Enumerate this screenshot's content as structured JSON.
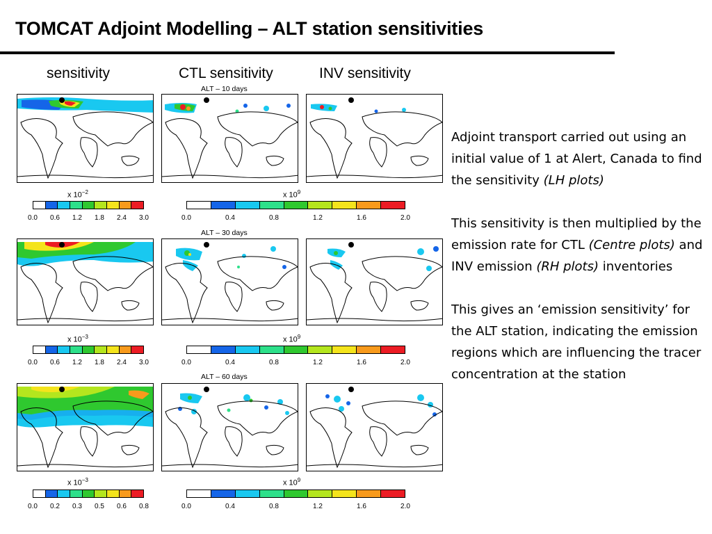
{
  "slide": {
    "title": "TOMCAT Adjoint Modelling – ALT station sensitivities"
  },
  "columns": {
    "left": "sensitivity",
    "centre": "CTL sensitivity",
    "right": "INV sensitivity"
  },
  "rows": [
    {
      "panel_label": "ALT – 10 days",
      "left_multiplier": {
        "base": "x 10",
        "exp": "−2"
      },
      "left_ticks": [
        "0.0",
        "0.6",
        "1.2",
        "1.8",
        "2.4",
        "3.0"
      ],
      "right_multiplier": {
        "base": "x 10",
        "exp": "9"
      },
      "right_ticks": [
        "0.0",
        "0.4",
        "0.8",
        "1.2",
        "1.6",
        "2.0"
      ]
    },
    {
      "panel_label": "ALT – 30 days",
      "left_multiplier": {
        "base": "x 10",
        "exp": "−3"
      },
      "left_ticks": [
        "0.0",
        "0.6",
        "1.2",
        "1.8",
        "2.4",
        "3.0"
      ],
      "right_multiplier": {
        "base": "x 10",
        "exp": "9"
      },
      "right_ticks": [
        "0.0",
        "0.4",
        "0.8",
        "1.2",
        "1.6",
        "2.0"
      ]
    },
    {
      "panel_label": "ALT – 60 days",
      "left_multiplier": {
        "base": "x 10",
        "exp": "−3"
      },
      "left_ticks": [
        "0.0",
        "0.2",
        "0.3",
        "0.5",
        "0.6",
        "0.8"
      ],
      "right_multiplier": {
        "base": "x 10",
        "exp": "9"
      },
      "right_ticks": [
        "0.0",
        "0.4",
        "0.8",
        "1.2",
        "1.6",
        "2.0"
      ]
    }
  ],
  "left_colorbar_colors": [
    "#ffffff",
    "#1565e8",
    "#19c8f0",
    "#2de08a",
    "#2fc82f",
    "#b4e61e",
    "#f4e41c",
    "#f89a1c",
    "#ec1c24"
  ],
  "right_colorbar_colors": [
    "#ffffff",
    "#1565e8",
    "#19c8f0",
    "#2de08a",
    "#2fc82f",
    "#b4e61e",
    "#f4e41c",
    "#f89a1c",
    "#ec1c24"
  ],
  "notes": {
    "p1_text": "Adjoint transport carried out using an initial value of 1 at Alert, Canada to find the sensitivity ",
    "p1_italic": "(LH plots)",
    "p2_text": "This sensitivity is then multiplied by the emission rate for CTL ",
    "p2_italic1": "(Centre plots)",
    "p2_mid": " and INV emission ",
    "p2_italic2": "(RH plots)",
    "p2_end": " inventories",
    "p3_text": "This gives an ‘emission sensitivity’ for the ALT station, indicating the emission regions which are influencing the tracer concentration at the station"
  }
}
